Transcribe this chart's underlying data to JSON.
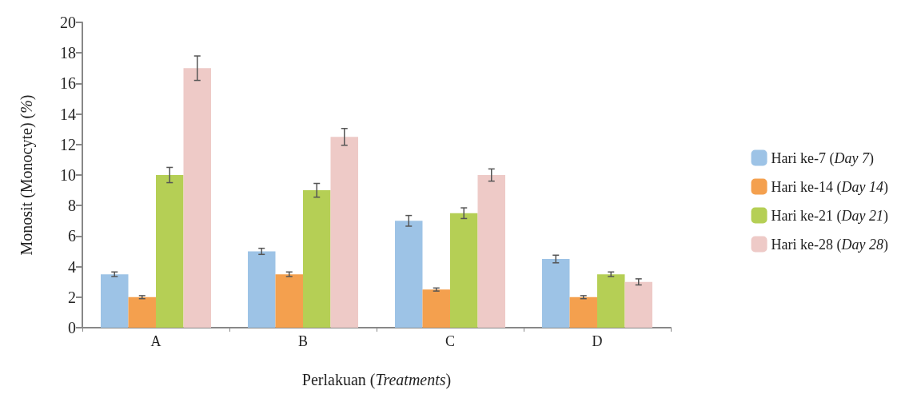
{
  "chart_data": {
    "type": "bar",
    "xlabel": "Perlakuan (Treatments)",
    "ylabel": "Monosit (Monocyte) (%)",
    "categories": [
      "A",
      "B",
      "C",
      "D"
    ],
    "series": [
      {
        "name": "Hari ke-7 (Day 7)",
        "color": "#9dc3e6",
        "values": [
          3.5,
          5,
          7,
          4.5
        ],
        "errors": [
          0.15,
          0.2,
          0.35,
          0.25
        ]
      },
      {
        "name": "Hari ke-14 (Day 14)",
        "color": "#f4a04e",
        "values": [
          2,
          3.5,
          2.5,
          2
        ],
        "errors": [
          0.1,
          0.15,
          0.1,
          0.1
        ]
      },
      {
        "name": "Hari ke-21 (Day 21)",
        "color": "#b5cf55",
        "values": [
          10,
          9,
          7.5,
          3.5
        ],
        "errors": [
          0.5,
          0.45,
          0.35,
          0.15
        ]
      },
      {
        "name": "Hari ke-28 (Day 28)",
        "color": "#eecac7",
        "values": [
          17,
          12.5,
          10,
          3
        ],
        "errors": [
          0.8,
          0.55,
          0.4,
          0.2
        ]
      }
    ],
    "ylim": [
      0,
      20
    ],
    "yticks": [
      0,
      2,
      4,
      6,
      8,
      10,
      12,
      14,
      16,
      18,
      20
    ],
    "grid": false,
    "legend": "right"
  }
}
